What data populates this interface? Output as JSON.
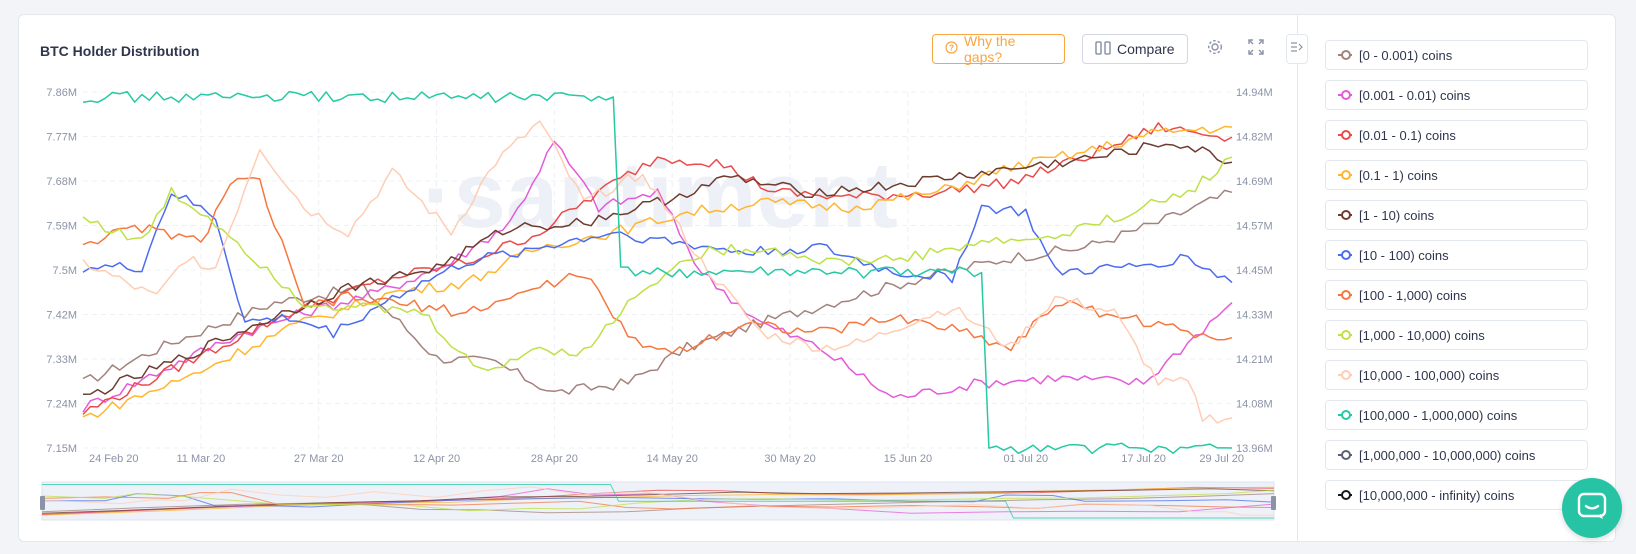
{
  "header": {
    "title": "BTC Holder Distribution",
    "gaps_label": "Why the gaps?",
    "compare_label": "Compare"
  },
  "icons": {
    "gaps": "question-circle-icon",
    "compare": "columns-icon",
    "settings": "gear-icon",
    "fullscreen": "expand-icon",
    "collapse": "collapse-sidebar-icon",
    "chat": "chat-icon"
  },
  "chart_data": {
    "type": "line",
    "title": "BTC Holder Distribution",
    "watermark": "·santiment",
    "x_ticks": [
      "24 Feb 20",
      "11 Mar 20",
      "27 Mar 20",
      "12 Apr 20",
      "28 Apr 20",
      "14 May 20",
      "30 May 20",
      "15 Jun 20",
      "01 Jul 20",
      "17 Jul 20",
      "29 Jul 20"
    ],
    "x_tick_days": [
      0,
      16,
      32,
      48,
      64,
      80,
      96,
      112,
      128,
      144,
      156
    ],
    "x_range_days": [
      0,
      156
    ],
    "y_left_ticks": [
      "7.86M",
      "7.77M",
      "7.68M",
      "7.59M",
      "7.5M",
      "7.42M",
      "7.33M",
      "7.24M",
      "7.15M"
    ],
    "y_left_range": [
      7150000,
      7860000
    ],
    "y_right_ticks": [
      "14.94M",
      "14.82M",
      "14.69M",
      "14.57M",
      "14.45M",
      "14.33M",
      "14.21M",
      "14.08M",
      "13.96M"
    ],
    "y_right_range": [
      13960000,
      14940000
    ],
    "grid": true,
    "legend_position": "right",
    "series": [
      {
        "name": "[0 - 0.001) coins",
        "color": "#a3827c",
        "points": [
          [
            0,
            7.28
          ],
          [
            12,
            7.36
          ],
          [
            26,
            7.44
          ],
          [
            38,
            7.47
          ],
          [
            48,
            7.33
          ],
          [
            56,
            7.32
          ],
          [
            64,
            7.26
          ],
          [
            74,
            7.28
          ],
          [
            82,
            7.35
          ],
          [
            92,
            7.4
          ],
          [
            104,
            7.45
          ],
          [
            114,
            7.49
          ],
          [
            126,
            7.53
          ],
          [
            136,
            7.55
          ],
          [
            146,
            7.6
          ],
          [
            156,
            7.66
          ]
        ]
      },
      {
        "name": "[0.001 - 0.01) coins",
        "color": "#e45bd9",
        "points": [
          [
            0,
            7.23
          ],
          [
            10,
            7.3
          ],
          [
            20,
            7.37
          ],
          [
            30,
            7.42
          ],
          [
            40,
            7.46
          ],
          [
            50,
            7.52
          ],
          [
            58,
            7.6
          ],
          [
            64,
            7.76
          ],
          [
            70,
            7.63
          ],
          [
            78,
            7.66
          ],
          [
            84,
            7.5
          ],
          [
            92,
            7.4
          ],
          [
            100,
            7.35
          ],
          [
            110,
            7.25
          ],
          [
            122,
            7.28
          ],
          [
            132,
            7.29
          ],
          [
            144,
            7.28
          ],
          [
            150,
            7.36
          ],
          [
            156,
            7.44
          ]
        ]
      },
      {
        "name": "[0.01 - 0.1) coins",
        "color": "#ea4b4b",
        "points": [
          [
            0,
            7.22
          ],
          [
            14,
            7.32
          ],
          [
            28,
            7.42
          ],
          [
            42,
            7.49
          ],
          [
            52,
            7.52
          ],
          [
            62,
            7.58
          ],
          [
            70,
            7.66
          ],
          [
            78,
            7.73
          ],
          [
            86,
            7.72
          ],
          [
            94,
            7.66
          ],
          [
            104,
            7.65
          ],
          [
            116,
            7.66
          ],
          [
            126,
            7.68
          ],
          [
            136,
            7.73
          ],
          [
            146,
            7.79
          ],
          [
            156,
            7.77
          ]
        ]
      },
      {
        "name": "[0.1 - 1) coins",
        "color": "#ffb62e",
        "points": [
          [
            0,
            7.21
          ],
          [
            14,
            7.29
          ],
          [
            28,
            7.39
          ],
          [
            42,
            7.46
          ],
          [
            52,
            7.48
          ],
          [
            62,
            7.55
          ],
          [
            72,
            7.58
          ],
          [
            82,
            7.62
          ],
          [
            92,
            7.64
          ],
          [
            104,
            7.63
          ],
          [
            116,
            7.66
          ],
          [
            126,
            7.71
          ],
          [
            136,
            7.74
          ],
          [
            146,
            7.78
          ],
          [
            156,
            7.79
          ]
        ]
      },
      {
        "name": "[1 - 10) coins",
        "color": "#6e3c2f",
        "points": [
          [
            0,
            7.25
          ],
          [
            12,
            7.32
          ],
          [
            24,
            7.4
          ],
          [
            36,
            7.47
          ],
          [
            48,
            7.51
          ],
          [
            58,
            7.59
          ],
          [
            68,
            7.6
          ],
          [
            78,
            7.64
          ],
          [
            88,
            7.69
          ],
          [
            98,
            7.66
          ],
          [
            108,
            7.67
          ],
          [
            118,
            7.69
          ],
          [
            128,
            7.71
          ],
          [
            138,
            7.73
          ],
          [
            148,
            7.76
          ],
          [
            156,
            7.72
          ]
        ]
      },
      {
        "name": "[10 - 100) coins",
        "color": "#4c6cf0",
        "points": [
          [
            0,
            7.51
          ],
          [
            8,
            7.51
          ],
          [
            12,
            7.66
          ],
          [
            18,
            7.61
          ],
          [
            22,
            7.4
          ],
          [
            28,
            7.41
          ],
          [
            34,
            7.38
          ],
          [
            42,
            7.45
          ],
          [
            52,
            7.52
          ],
          [
            62,
            7.55
          ],
          [
            72,
            7.58
          ],
          [
            80,
            7.56
          ],
          [
            90,
            7.54
          ],
          [
            100,
            7.55
          ],
          [
            110,
            7.5
          ],
          [
            118,
            7.49
          ],
          [
            122,
            7.63
          ],
          [
            128,
            7.62
          ],
          [
            132,
            7.5
          ],
          [
            142,
            7.51
          ],
          [
            150,
            7.53
          ],
          [
            156,
            7.48
          ]
        ]
      },
      {
        "name": "[100 - 1,000) coins",
        "color": "#f57740",
        "points": [
          [
            0,
            7.56
          ],
          [
            8,
            7.59
          ],
          [
            16,
            7.56
          ],
          [
            20,
            7.68
          ],
          [
            24,
            7.68
          ],
          [
            30,
            7.43
          ],
          [
            36,
            7.45
          ],
          [
            42,
            7.44
          ],
          [
            52,
            7.42
          ],
          [
            62,
            7.47
          ],
          [
            68,
            7.5
          ],
          [
            74,
            7.37
          ],
          [
            80,
            7.34
          ],
          [
            90,
            7.4
          ],
          [
            100,
            7.38
          ],
          [
            110,
            7.41
          ],
          [
            118,
            7.39
          ],
          [
            126,
            7.35
          ],
          [
            132,
            7.44
          ],
          [
            142,
            7.41
          ],
          [
            150,
            7.38
          ],
          [
            156,
            7.37
          ]
        ]
      },
      {
        "name": "[1,000 - 10,000) coins",
        "color": "#bee146",
        "points": [
          [
            0,
            7.61
          ],
          [
            8,
            7.56
          ],
          [
            12,
            7.66
          ],
          [
            18,
            7.6
          ],
          [
            24,
            7.52
          ],
          [
            30,
            7.44
          ],
          [
            38,
            7.43
          ],
          [
            46,
            7.42
          ],
          [
            54,
            7.3
          ],
          [
            62,
            7.35
          ],
          [
            68,
            7.34
          ],
          [
            76,
            7.47
          ],
          [
            84,
            7.54
          ],
          [
            92,
            7.55
          ],
          [
            102,
            7.52
          ],
          [
            112,
            7.53
          ],
          [
            122,
            7.56
          ],
          [
            132,
            7.57
          ],
          [
            142,
            7.62
          ],
          [
            150,
            7.66
          ],
          [
            156,
            7.73
          ]
        ]
      },
      {
        "name": "[10,000 - 100,000) coins",
        "color": "#ffcdb4",
        "points": [
          [
            0,
            7.52
          ],
          [
            10,
            7.45
          ],
          [
            14,
            7.53
          ],
          [
            18,
            7.51
          ],
          [
            24,
            7.75
          ],
          [
            30,
            7.63
          ],
          [
            36,
            7.58
          ],
          [
            42,
            7.7
          ],
          [
            50,
            7.58
          ],
          [
            56,
            7.72
          ],
          [
            62,
            7.8
          ],
          [
            68,
            7.64
          ],
          [
            76,
            7.7
          ],
          [
            84,
            7.52
          ],
          [
            92,
            7.38
          ],
          [
            100,
            7.35
          ],
          [
            106,
            7.36
          ],
          [
            112,
            7.4
          ],
          [
            118,
            7.43
          ],
          [
            126,
            7.35
          ],
          [
            132,
            7.45
          ],
          [
            140,
            7.42
          ],
          [
            146,
            7.28
          ],
          [
            150,
            7.28
          ],
          [
            152,
            7.21
          ],
          [
            156,
            7.21
          ]
        ]
      },
      {
        "name": "[100,000 - 1,000,000) coins",
        "color": "#26c9a4",
        "points": [
          [
            0,
            7.85
          ],
          [
            72,
            7.85
          ],
          [
            73,
            7.5
          ],
          [
            122,
            7.5
          ],
          [
            123,
            7.15
          ],
          [
            156,
            7.15
          ]
        ]
      },
      {
        "name": "[1,000,000 - 10,000,000) coins",
        "color": "#5c6173",
        "points": []
      },
      {
        "name": "[10,000,000 - infinity) coins",
        "color": "#15181f",
        "points": []
      }
    ]
  }
}
